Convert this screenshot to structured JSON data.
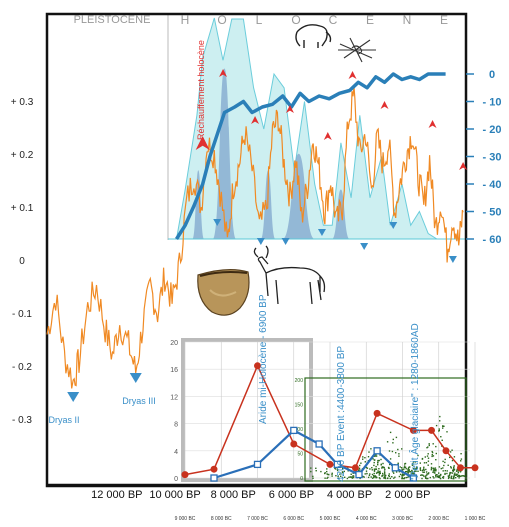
{
  "header": {
    "pleistocene": "PLEISTOCENE",
    "holocene_letters": [
      "H",
      "O",
      "L",
      "O",
      "C",
      "E",
      "N",
      "E"
    ]
  },
  "colors": {
    "temperature": "#f08a24",
    "co2": "#2a7fb8",
    "area_outer": "#c8eef0",
    "area_outer_edge": "#5cc8d8",
    "area_inner": "#7fa6cc",
    "event_marker": "#e03030",
    "cold_marker": "#3a8fc8",
    "aridity_red": "#c8321e",
    "aridity_blue": "#2a6fb8",
    "density_green": "#2e6b1f",
    "frame": "#111111"
  },
  "annotations": {
    "rechauffement": "Réchauffement holocène",
    "aride": "Aride mi-Holocène - 6900 BP",
    "event_4200": "4200 BP Event :4400-3800 BP",
    "petit_age": "\"Petit Âge glaciaire\" : 1280-1860AD",
    "dryas_ii": "Dryas II",
    "dryas_iii": "Dryas III"
  },
  "chart_data": [
    {
      "type": "line",
      "name": "temperature anomaly",
      "x_unit": "years BP",
      "x_labels": [
        "12 000 BP",
        "10 000 BP",
        "8 000 BP",
        "6 000 BP",
        "4 000 BP",
        "2 000 BP"
      ],
      "x_label_values": [
        12000,
        10000,
        8000,
        6000,
        4000,
        2000
      ],
      "y_tick_labels": [
        "+ 0.3",
        "+ 0.2",
        "+ 0.1",
        "0",
        "- 0.1",
        "- 0.2",
        "- 0.3"
      ],
      "y_tick_values": [
        0.3,
        0.2,
        0.1,
        0,
        -0.1,
        -0.2,
        -0.3
      ],
      "ylim": [
        -0.35,
        0.35
      ],
      "xlim": [
        14400,
        0
      ],
      "points": [
        [
          14400,
          -0.14
        ],
        [
          14100,
          -0.07
        ],
        [
          13800,
          -0.18
        ],
        [
          13500,
          -0.23
        ],
        [
          13300,
          -0.19
        ],
        [
          13000,
          -0.09
        ],
        [
          12700,
          -0.05
        ],
        [
          12400,
          -0.13
        ],
        [
          12150,
          -0.18
        ],
        [
          11900,
          -0.12
        ],
        [
          11600,
          -0.16
        ],
        [
          11350,
          -0.21
        ],
        [
          11100,
          -0.12
        ],
        [
          10850,
          -0.05
        ],
        [
          10600,
          -0.1
        ],
        [
          10350,
          -0.03
        ],
        [
          10100,
          -0.08
        ],
        [
          9850,
          -0.01
        ],
        [
          9600,
          0.11
        ],
        [
          9350,
          0.16
        ],
        [
          9100,
          0.1
        ],
        [
          8900,
          0.22
        ],
        [
          8650,
          0.2
        ],
        [
          8450,
          0.13
        ],
        [
          8200,
          0.03
        ],
        [
          8000,
          0.14
        ],
        [
          7800,
          0.18
        ],
        [
          7600,
          0.24
        ],
        [
          7350,
          0.17
        ],
        [
          7100,
          0.06
        ],
        [
          6850,
          0.1
        ],
        [
          6650,
          0.24
        ],
        [
          6450,
          0.27
        ],
        [
          6250,
          0.18
        ],
        [
          6050,
          0.12
        ],
        [
          5850,
          0.19
        ],
        [
          5650,
          0.08
        ],
        [
          5450,
          0.14
        ],
        [
          5250,
          0.23
        ],
        [
          5050,
          0.17
        ],
        [
          4850,
          0.09
        ],
        [
          4650,
          0.15
        ],
        [
          4450,
          0.07
        ],
        [
          4250,
          0.1
        ],
        [
          4050,
          0.26
        ],
        [
          3850,
          0.31
        ],
        [
          3650,
          0.2
        ],
        [
          3450,
          0.24
        ],
        [
          3250,
          0.13
        ],
        [
          3050,
          0.23
        ],
        [
          2850,
          0.18
        ],
        [
          2650,
          0.22
        ],
        [
          2450,
          0.09
        ],
        [
          2250,
          0.15
        ],
        [
          2050,
          0.2
        ],
        [
          1850,
          0.24
        ],
        [
          1650,
          0.16
        ],
        [
          1450,
          0.1
        ],
        [
          1250,
          0.19
        ],
        [
          1050,
          0.06
        ],
        [
          850,
          0.11
        ],
        [
          650,
          0.02
        ],
        [
          450,
          0.08
        ],
        [
          250,
          0.03
        ],
        [
          100,
          0.09
        ]
      ],
      "cold_events": [
        {
          "label": "Dryas II",
          "x": 13500
        },
        {
          "label": "Dryas III",
          "x": 11350
        }
      ]
    },
    {
      "type": "line",
      "name": "CO2 scale (right axis)",
      "y_tick_labels": [
        "0",
        "- 10",
        "- 20",
        "- 30",
        "- 40",
        "- 50",
        "- 60"
      ],
      "y_tick_values": [
        0,
        -10,
        -20,
        -30,
        -40,
        -50,
        -60
      ],
      "ylim": [
        -60,
        0
      ],
      "points": [
        [
          9950,
          -60
        ],
        [
          9650,
          -55
        ],
        [
          9350,
          -48
        ],
        [
          9050,
          -40
        ],
        [
          8800,
          -30
        ],
        [
          8550,
          -22
        ],
        [
          8300,
          -14
        ],
        [
          7950,
          -12
        ],
        [
          7650,
          -10
        ],
        [
          7350,
          -14
        ],
        [
          7000,
          -12
        ],
        [
          6650,
          -11
        ],
        [
          6300,
          -8
        ],
        [
          6000,
          -12
        ],
        [
          5700,
          -7
        ],
        [
          5400,
          -10
        ],
        [
          5050,
          -8
        ],
        [
          4700,
          -9
        ],
        [
          4350,
          -7
        ],
        [
          4000,
          -6
        ],
        [
          3700,
          -3
        ],
        [
          3400,
          -5
        ],
        [
          3100,
          -1
        ],
        [
          2800,
          -3
        ],
        [
          2500,
          0
        ],
        [
          2200,
          -2
        ],
        [
          1900,
          -1
        ],
        [
          1600,
          -2
        ],
        [
          1300,
          0
        ],
        [
          1000,
          0
        ],
        [
          700,
          0
        ]
      ]
    },
    {
      "type": "area",
      "name": "humidity envelope",
      "points": [
        [
          9950,
          -60
        ],
        [
          9650,
          -42
        ],
        [
          9250,
          -15
        ],
        [
          9050,
          6
        ],
        [
          8650,
          22
        ],
        [
          8350,
          5
        ],
        [
          8050,
          20
        ],
        [
          7650,
          20
        ],
        [
          7300,
          -5
        ],
        [
          6950,
          -20
        ],
        [
          6600,
          0
        ],
        [
          6250,
          -5
        ],
        [
          5900,
          -35
        ],
        [
          5550,
          -10
        ],
        [
          5200,
          -40
        ],
        [
          4900,
          -55
        ],
        [
          4600,
          -55
        ],
        [
          4300,
          -25
        ],
        [
          3950,
          -45
        ],
        [
          3650,
          -15
        ],
        [
          3300,
          -45
        ],
        [
          2900,
          -30
        ],
        [
          2600,
          -55
        ],
        [
          2200,
          -40
        ],
        [
          1900,
          -55
        ],
        [
          1600,
          -50
        ],
        [
          1300,
          -58
        ],
        [
          1000,
          -60
        ]
      ]
    },
    {
      "type": "area",
      "name": "event peaks",
      "peaks": [
        {
          "center": 9200,
          "half_width": 200,
          "top": -35
        },
        {
          "center": 8300,
          "half_width": 400,
          "top": 2
        },
        {
          "center": 6800,
          "half_width": 250,
          "top": -35
        },
        {
          "center": 5750,
          "half_width": 550,
          "top": -29
        },
        {
          "center": 4300,
          "half_width": 300,
          "top": -42
        }
      ],
      "warm_markers": [
        9050,
        8350,
        7250,
        6050,
        4750,
        3900,
        2800,
        1150,
        100
      ],
      "cold_markers": [
        8550,
        7050,
        6200,
        4950,
        3500,
        2500,
        450
      ]
    },
    {
      "type": "line",
      "name": "aridity index",
      "y_tick_labels": [
        "20",
        "16",
        "12",
        "8",
        "4",
        "0"
      ],
      "y_tick_values": [
        20,
        16,
        12,
        8,
        4,
        0
      ],
      "ylim": [
        0,
        20
      ],
      "x_tick_labels": [
        "9 000 BC",
        "8 000 BC",
        "7 000 BC",
        "6 000 BC",
        "5 000 BC",
        "4 000 BC",
        "3 000 BC",
        "2 000 BC",
        "1 000 BC"
      ],
      "x_tick_values": [
        -9000,
        -8000,
        -7000,
        -6000,
        -5000,
        -4000,
        -3000,
        -2000,
        -1000
      ],
      "red_series": [
        [
          -9000,
          0.5
        ],
        [
          -8200,
          1.3
        ],
        [
          -7000,
          16.5
        ],
        [
          -6000,
          5
        ],
        [
          -5000,
          2
        ],
        [
          -4300,
          1.5
        ],
        [
          -3700,
          9.5
        ],
        [
          -2700,
          7
        ],
        [
          -2200,
          7
        ],
        [
          -1800,
          4
        ],
        [
          -1400,
          1.5
        ],
        [
          -1000,
          1.5
        ]
      ],
      "blue_series": [
        [
          -8200,
          0
        ],
        [
          -7000,
          2
        ],
        [
          -6000,
          7
        ],
        [
          -5300,
          5
        ],
        [
          -4800,
          2
        ],
        [
          -4200,
          0.5
        ],
        [
          -3700,
          4
        ],
        [
          -3200,
          1.5
        ],
        [
          -2700,
          0
        ]
      ]
    },
    {
      "type": "scatter",
      "name": "site density",
      "y_tick_labels": [
        "200",
        "150",
        "100",
        "50",
        "0"
      ],
      "y_tick_values": [
        200,
        150,
        100,
        50,
        0
      ],
      "ylim": [
        0,
        200
      ],
      "bursts": [
        {
          "x": -3900,
          "height": 70
        },
        {
          "x": -3300,
          "height": 110
        },
        {
          "x": -2500,
          "height": 60
        },
        {
          "x": -2000,
          "height": 150
        },
        {
          "x": -1200,
          "height": 80
        },
        {
          "x": -800,
          "height": 40
        }
      ]
    }
  ]
}
